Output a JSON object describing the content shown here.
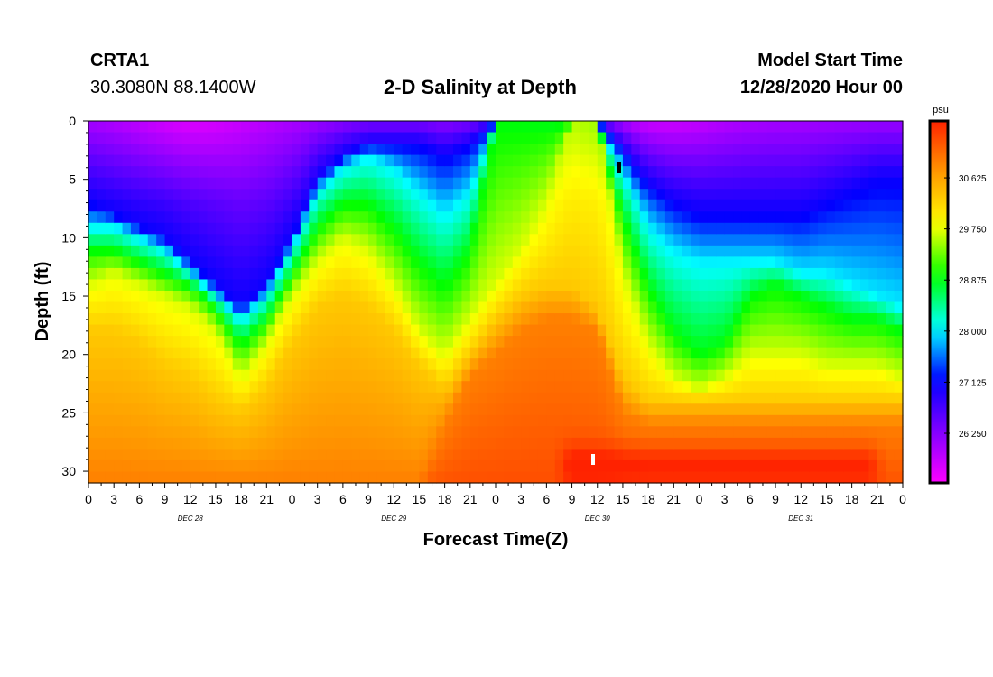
{
  "header": {
    "station_id": "CRTA1",
    "station_coords": "30.3080N 88.1400W",
    "title": "2-D Salinity at Depth",
    "model_start_label": "Model Start Time",
    "model_start_value": "12/28/2020 Hour 00"
  },
  "colors": {
    "scale": [
      "#ff00ff",
      "#8000ff",
      "#0000ff",
      "#00ffff",
      "#00ff00",
      "#ffff00",
      "#ff9900",
      "#ff2200"
    ]
  },
  "chart_data": {
    "type": "heatmap",
    "title": "2-D Salinity at Depth",
    "xlabel": "Forecast Time(Z)",
    "ylabel": "Depth (ft)",
    "x_unit": "forecast hours since 12/28/2020 00Z",
    "xlim": [
      0,
      96
    ],
    "ylim": [
      0,
      31
    ],
    "y_inverted": true,
    "x_ticks": [
      0,
      3,
      6,
      9,
      12,
      15,
      18,
      21,
      24,
      27,
      30,
      33,
      36,
      39,
      42,
      45,
      48,
      51,
      54,
      57,
      60,
      63,
      66,
      69,
      72,
      75,
      78,
      81,
      84,
      87,
      90,
      93,
      96
    ],
    "x_tick_labels": [
      "0",
      "3",
      "6",
      "9",
      "12",
      "15",
      "18",
      "21",
      "0",
      "3",
      "6",
      "9",
      "12",
      "15",
      "18",
      "21",
      "0",
      "3",
      "6",
      "9",
      "12",
      "15",
      "18",
      "21",
      "0",
      "3",
      "6",
      "9",
      "12",
      "15",
      "18",
      "21",
      "0"
    ],
    "date_labels": [
      {
        "hour": 12,
        "text": "DEC 28"
      },
      {
        "hour": 36,
        "text": "DEC 29"
      },
      {
        "hour": 60,
        "text": "DEC 30"
      },
      {
        "hour": 84,
        "text": "DEC 31"
      }
    ],
    "y_ticks": [
      0,
      5,
      10,
      15,
      20,
      25,
      30
    ],
    "y_tick_labels": [
      "0",
      "5",
      "10",
      "15",
      "20",
      "25",
      "30"
    ],
    "colorbar": {
      "unit": "psu",
      "vmin": 25.4,
      "vmax": 31.6,
      "labels": [
        "30.625",
        "29.750",
        "28.875",
        "28.000",
        "27.125",
        "26.250"
      ],
      "label_values": [
        30.625,
        29.75,
        28.875,
        28.0,
        27.125,
        26.25
      ]
    },
    "isohaline_depth_profiles": {
      "description": "depth (ft) at which salinity reaches each threshold, by forecast hour",
      "hours": [
        0,
        3,
        6,
        9,
        12,
        15,
        18,
        21,
        24,
        27,
        30,
        33,
        36,
        39,
        42,
        45,
        48,
        51,
        54,
        57,
        60,
        63,
        66,
        69,
        72,
        75,
        78,
        81,
        84,
        87,
        90,
        93,
        96
      ],
      "thresholds": [
        {
          "psu": 27.1,
          "depths": [
            7,
            8,
            9,
            10,
            12,
            14,
            16,
            14,
            10,
            5,
            3,
            2,
            2,
            2,
            3,
            2,
            0,
            0,
            0,
            0,
            0,
            2,
            5,
            7,
            8,
            8,
            8,
            8,
            8,
            7,
            6,
            5,
            5
          ]
        },
        {
          "psu": 28.0,
          "depths": [
            9,
            9,
            10,
            11,
            13,
            15,
            17,
            15,
            11,
            6,
            4,
            3,
            4,
            6,
            8,
            6,
            0,
            0,
            0,
            0,
            0,
            4,
            9,
            11,
            12,
            12,
            12,
            12,
            13,
            13,
            14,
            15,
            16
          ]
        },
        {
          "psu": 28.9,
          "depths": [
            11,
            11,
            12,
            13,
            14,
            16,
            19,
            17,
            13,
            9,
            7,
            7,
            9,
            12,
            14,
            11,
            0,
            0,
            0,
            0,
            0,
            8,
            14,
            18,
            20,
            19,
            15,
            14,
            15,
            16,
            17,
            17,
            18
          ]
        },
        {
          "psu": 29.7,
          "depths": [
            14,
            13,
            14,
            15,
            16,
            18,
            22,
            19,
            15,
            12,
            10,
            11,
            14,
            18,
            20,
            17,
            14,
            11,
            7,
            0,
            0,
            13,
            19,
            22,
            23,
            22,
            20,
            20,
            20,
            21,
            21,
            21,
            22
          ]
        },
        {
          "psu": 30.3,
          "depths": [
            18,
            18,
            19,
            21,
            22,
            24,
            25,
            23,
            19,
            16,
            15,
            16,
            18,
            21,
            23,
            20,
            17,
            15,
            14,
            14,
            16,
            22,
            24,
            24,
            24,
            24,
            24,
            24,
            24,
            24,
            24,
            24,
            24
          ]
        },
        {
          "psu": 30.9,
          "depths": [
            31,
            31,
            31,
            31,
            31,
            31,
            31,
            31,
            31,
            31,
            31,
            31,
            31,
            31,
            26,
            22,
            20,
            18,
            17,
            17,
            18,
            25,
            26,
            26,
            26,
            26,
            26,
            26,
            26,
            26,
            26,
            26,
            26
          ]
        }
      ]
    }
  }
}
